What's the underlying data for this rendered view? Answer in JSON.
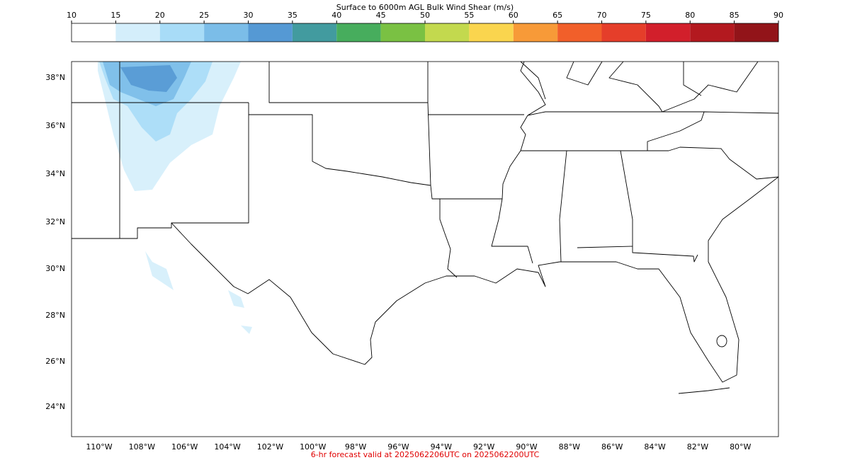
{
  "colorbar": {
    "title": "Surface to 6000m AGL Bulk Wind Shear (m/s)",
    "ticks": [
      10,
      15,
      20,
      25,
      30,
      35,
      40,
      45,
      50,
      55,
      60,
      65,
      70,
      75,
      80,
      85,
      90
    ],
    "colors": [
      "#ffffff",
      "#d4eefb",
      "#a8dcf7",
      "#7bbde8",
      "#5599d4",
      "#429b9f",
      "#47ad5d",
      "#7ac143",
      "#c3d94e",
      "#fad54e",
      "#f79a38",
      "#f15f2a",
      "#e53e2a",
      "#d21f2b",
      "#b3191f",
      "#921419"
    ]
  },
  "map": {
    "lat_labels": [
      "38°N",
      "36°N",
      "34°N",
      "32°N",
      "30°N",
      "28°N",
      "26°N",
      "24°N"
    ],
    "lon_labels": [
      "110°W",
      "108°W",
      "106°W",
      "104°W",
      "102°W",
      "100°W",
      "98°W",
      "96°W",
      "94°W",
      "92°W",
      "90°W",
      "88°W",
      "86°W",
      "84°W",
      "82°W",
      "80°W"
    ]
  },
  "footer": "6-hr forecast valid at 2025062206UTC on 2025062200UTC"
}
